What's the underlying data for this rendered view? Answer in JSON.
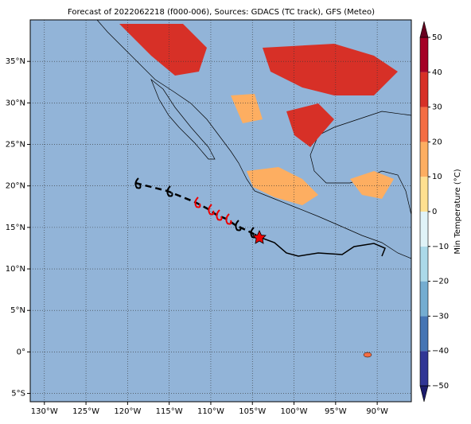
{
  "chart_data": {
    "type": "map",
    "title": "Forecast of 2022062218 (f000-006), Sources: GDACS (TC track), GFS (Meteo)",
    "xlim": [
      -131.7,
      -85.9
    ],
    "ylim": [
      -6,
      40
    ],
    "xticks": [
      {
        "value": -130,
        "label": "130°W"
      },
      {
        "value": -125,
        "label": "125°W"
      },
      {
        "value": -120,
        "label": "120°W"
      },
      {
        "value": -115,
        "label": "115°W"
      },
      {
        "value": -110,
        "label": "110°W"
      },
      {
        "value": -105,
        "label": "105°W"
      },
      {
        "value": -100,
        "label": "100°W"
      },
      {
        "value": -95,
        "label": "95°W"
      },
      {
        "value": -90,
        "label": "90°W"
      }
    ],
    "yticks": [
      {
        "value": -5,
        "label": "5°S"
      },
      {
        "value": 0,
        "label": "0°"
      },
      {
        "value": 5,
        "label": "5°N"
      },
      {
        "value": 10,
        "label": "10°N"
      },
      {
        "value": 15,
        "label": "15°N"
      },
      {
        "value": 20,
        "label": "20°N"
      },
      {
        "value": 25,
        "label": "25°N"
      },
      {
        "value": 30,
        "label": "30°N"
      },
      {
        "value": 35,
        "label": "35°N"
      }
    ],
    "grid": true,
    "colorbar": {
      "label": "Min Temperature (°C)",
      "lim": [
        -50,
        50
      ],
      "ticks": [
        {
          "value": -50,
          "label": "−50"
        },
        {
          "value": -40,
          "label": "−40"
        },
        {
          "value": -30,
          "label": "−30"
        },
        {
          "value": -20,
          "label": "−20"
        },
        {
          "value": -10,
          "label": "−10"
        },
        0,
        10,
        20,
        30,
        40,
        50
      ],
      "colors": [
        "#313695",
        "#4575b4",
        "#74add1",
        "#abd9e9",
        "#e0f3f8",
        "#fee090",
        "#fdae61",
        "#f46d43",
        "#d73027",
        "#a50026"
      ]
    }
  }
}
